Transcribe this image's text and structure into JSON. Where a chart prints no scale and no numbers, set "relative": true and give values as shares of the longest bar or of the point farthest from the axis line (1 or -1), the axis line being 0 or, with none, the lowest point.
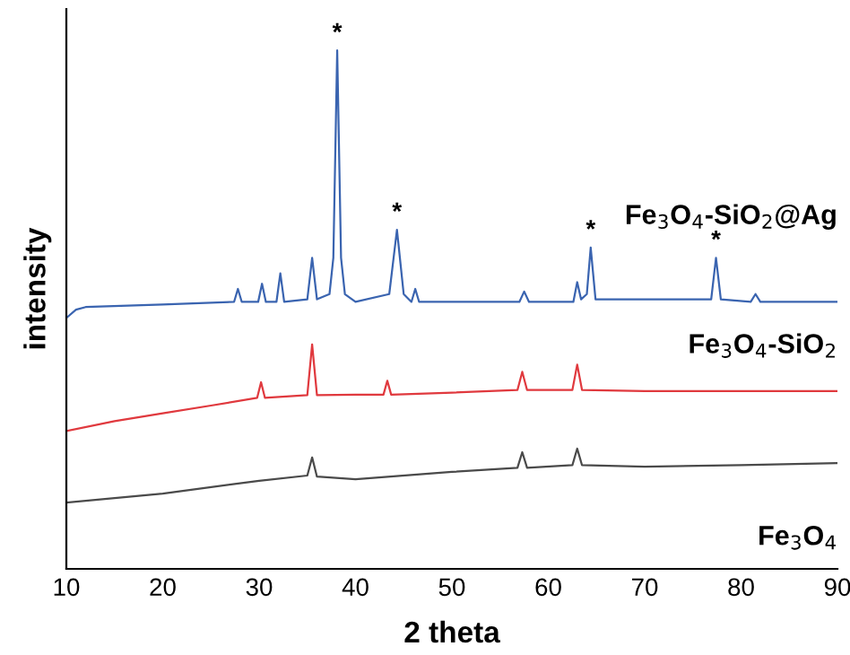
{
  "chart_data": {
    "type": "line",
    "relative": true,
    "xlabel": "2 theta",
    "ylabel": "intensity",
    "xlim": [
      10,
      90
    ],
    "xticks": [
      10,
      20,
      30,
      40,
      50,
      60,
      70,
      80,
      90
    ],
    "grid": false,
    "legend": false,
    "tick_labels": "x",
    "series": [
      {
        "name": "Fe$_{3}$O$_{4}$-SiO$_{2}$@Ag",
        "color": "#3a64b0",
        "x": [
          10,
          11,
          12,
          20,
          27.4,
          27.8,
          28.2,
          29.9,
          30.3,
          30.7,
          31.8,
          32.2,
          32.6,
          35.0,
          35.5,
          36.0,
          37.3,
          37.7,
          38.1,
          38.5,
          38.9,
          40,
          43.5,
          44.3,
          45.0,
          45.8,
          46.2,
          46.6,
          57.0,
          57.5,
          58,
          62.6,
          63.0,
          63.4,
          64.0,
          64.4,
          64.9,
          76.9,
          77.4,
          77.9,
          81,
          81.5,
          82,
          90
        ],
        "values": [
          0.484,
          0.5,
          0.505,
          0.51,
          0.515,
          0.54,
          0.515,
          0.515,
          0.55,
          0.515,
          0.515,
          0.57,
          0.515,
          0.52,
          0.6,
          0.52,
          0.53,
          0.6,
          1.0,
          0.6,
          0.53,
          0.515,
          0.53,
          0.654,
          0.53,
          0.515,
          0.54,
          0.515,
          0.515,
          0.535,
          0.515,
          0.515,
          0.553,
          0.52,
          0.53,
          0.62,
          0.52,
          0.52,
          0.6,
          0.52,
          0.515,
          0.53,
          0.515,
          0.515
        ]
      },
      {
        "name": "Fe$_{3}$O$_{4}$-SiO$_{2}$",
        "color": "#e0393e",
        "x": [
          10,
          15,
          20,
          25,
          29.8,
          30.2,
          30.6,
          35.0,
          35.5,
          36.0,
          40,
          42.9,
          43.3,
          43.7,
          50,
          56.8,
          57.3,
          57.8,
          62.5,
          63.0,
          63.5,
          70,
          80,
          90
        ],
        "values": [
          0.266,
          0.285,
          0.3,
          0.315,
          0.33,
          0.36,
          0.33,
          0.335,
          0.433,
          0.335,
          0.336,
          0.336,
          0.363,
          0.336,
          0.34,
          0.345,
          0.38,
          0.345,
          0.345,
          0.394,
          0.345,
          0.343,
          0.343,
          0.343
        ]
      },
      {
        "name": "Fe$_{3}$O$_{4}$",
        "color": "#4a4a4a",
        "x": [
          10,
          20,
          30,
          35.0,
          35.5,
          36.0,
          40,
          50,
          56.8,
          57.3,
          57.8,
          62.5,
          63.0,
          63.5,
          70,
          80,
          90
        ],
        "values": [
          0.128,
          0.145,
          0.17,
          0.18,
          0.215,
          0.178,
          0.173,
          0.187,
          0.195,
          0.225,
          0.195,
          0.2,
          0.232,
          0.2,
          0.197,
          0.2,
          0.204
        ]
      }
    ],
    "annotations": [
      {
        "text": "*",
        "x": 38.1,
        "y": 1.0
      },
      {
        "text": "*",
        "x": 44.3,
        "y": 0.654
      },
      {
        "text": "*",
        "x": 64.4,
        "y": 0.62
      },
      {
        "text": "*",
        "x": 77.4,
        "y": 0.6
      }
    ]
  }
}
